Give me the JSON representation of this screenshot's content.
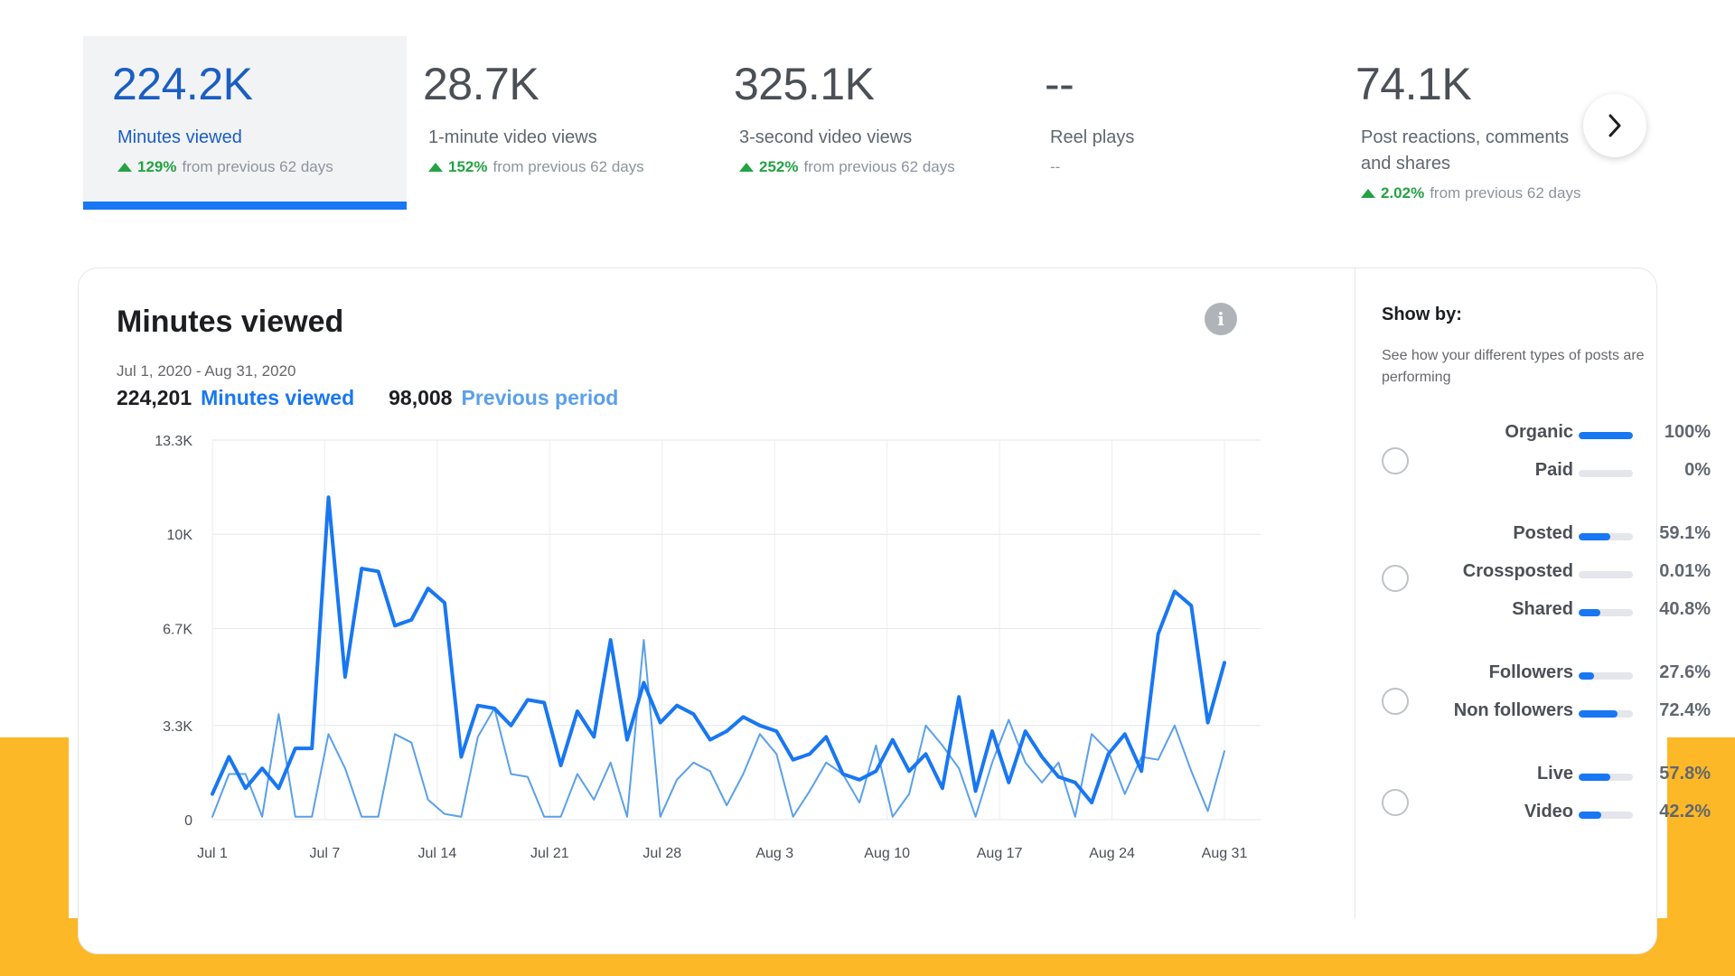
{
  "colors": {
    "accent": "#1877f2",
    "previous_series": "#5aa0ea",
    "positive": "#25a244",
    "background_band": "#FDB827"
  },
  "kpis": [
    {
      "value": "224.2K",
      "label": "Minutes viewed",
      "pct": "129%",
      "delta_text": "from previous 62 days",
      "selected": true
    },
    {
      "value": "28.7K",
      "label": "1-minute video views",
      "pct": "152%",
      "delta_text": "from previous 62 days",
      "selected": false
    },
    {
      "value": "325.1K",
      "label": "3-second video views",
      "pct": "252%",
      "delta_text": "from previous 62 days",
      "selected": false
    },
    {
      "value": "--",
      "label": "Reel plays",
      "pct": "",
      "delta_text": "--",
      "selected": false
    },
    {
      "value": "74.1K",
      "label": "Post reactions, comments and shares",
      "pct": "2.02%",
      "delta_text": "from previous 62 days",
      "selected": false
    }
  ],
  "next_icon": "chevron-right-icon",
  "card": {
    "title": "Minutes viewed",
    "info_icon": "info-icon",
    "date_range": "Jul 1, 2020 - Aug 31, 2020",
    "current_total": "224,201",
    "current_label": "Minutes viewed",
    "previous_total": "98,008",
    "previous_label": "Previous period"
  },
  "chart_data": {
    "type": "line",
    "x_labels": [
      "Jul 1",
      "Jul 7",
      "Jul 14",
      "Jul 21",
      "Jul 28",
      "Aug 3",
      "Aug 10",
      "Aug 17",
      "Aug 24",
      "Aug 31"
    ],
    "y_tick_labels": [
      "0",
      "3.3K",
      "6.7K",
      "10K",
      "13.3K"
    ],
    "y_tick_values": [
      0,
      3300,
      6700,
      10000,
      13300
    ],
    "ylim": [
      0,
      13300
    ],
    "grid": true,
    "series": [
      {
        "name": "Minutes viewed",
        "color": "#1877f2",
        "values": [
          900,
          2200,
          1100,
          1800,
          1100,
          2500,
          2500,
          11300,
          5000,
          8800,
          8700,
          6800,
          7000,
          8100,
          7600,
          2200,
          4000,
          3900,
          3300,
          4200,
          4100,
          1900,
          3800,
          2900,
          6300,
          2800,
          4800,
          3400,
          4000,
          3700,
          2800,
          3100,
          3600,
          3300,
          3100,
          2100,
          2300,
          2900,
          1600,
          1400,
          1700,
          2800,
          1700,
          2300,
          1100,
          4300,
          1000,
          3100,
          1300,
          3100,
          2200,
          1500,
          1300,
          600,
          2300,
          3000,
          1700,
          6500,
          8000,
          7500,
          3400,
          5500
        ]
      },
      {
        "name": "Previous period",
        "color": "#5aa0ea",
        "values": [
          100,
          1600,
          1600,
          100,
          3700,
          100,
          100,
          3000,
          1800,
          100,
          100,
          3000,
          2700,
          700,
          200,
          100,
          2900,
          3900,
          1600,
          1500,
          100,
          100,
          1600,
          700,
          2000,
          100,
          6300,
          100,
          1400,
          2000,
          1700,
          500,
          1600,
          3000,
          2300,
          100,
          1000,
          2000,
          1600,
          600,
          2600,
          100,
          900,
          3300,
          2600,
          1800,
          100,
          2000,
          3500,
          2000,
          1300,
          2000,
          100,
          3000,
          2400,
          900,
          2200,
          2100,
          3300,
          1700,
          300,
          2400
        ]
      }
    ]
  },
  "showby": {
    "title": "Show by:",
    "description": "See how your different types of posts are performing",
    "groups": [
      {
        "rows": [
          {
            "label": "Organic",
            "pct": "100%",
            "fill": 1.0
          },
          {
            "label": "Paid",
            "pct": "0%",
            "fill": 0.0
          }
        ]
      },
      {
        "rows": [
          {
            "label": "Posted",
            "pct": "59.1%",
            "fill": 0.591
          },
          {
            "label": "Crossposted",
            "pct": "0.01%",
            "fill": 0.0001
          },
          {
            "label": "Shared",
            "pct": "40.8%",
            "fill": 0.408
          }
        ]
      },
      {
        "rows": [
          {
            "label": "Followers",
            "pct": "27.6%",
            "fill": 0.276
          },
          {
            "label": "Non followers",
            "pct": "72.4%",
            "fill": 0.724
          }
        ]
      },
      {
        "rows": [
          {
            "label": "Live",
            "pct": "57.8%",
            "fill": 0.578
          },
          {
            "label": "Video",
            "pct": "42.2%",
            "fill": 0.422
          }
        ]
      }
    ]
  }
}
